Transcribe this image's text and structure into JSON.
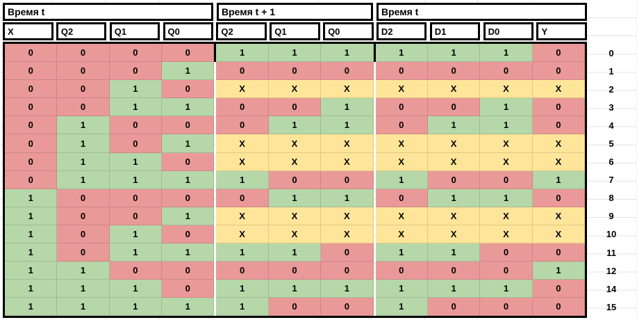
{
  "colors": {
    "fill_red": "#ea9999",
    "fill_green": "#b6d7a8",
    "fill_yellow": "#ffe599",
    "border": "#000000",
    "gridline": "#e4e4e4"
  },
  "bands": [
    {
      "label": "Время t",
      "span": 4
    },
    {
      "label": "Время t + 1",
      "span": 3
    },
    {
      "label": "Время t",
      "span": 4
    }
  ],
  "columns": [
    "X",
    "Q2",
    "Q1",
    "Q0",
    "Q2",
    "Q1",
    "Q0",
    "D2",
    "D1",
    "D0",
    "Y"
  ],
  "rows": [
    {
      "label": "0",
      "values": [
        "0",
        "0",
        "0",
        "0",
        "1",
        "1",
        "1",
        "1",
        "1",
        "1",
        "0"
      ],
      "colors": [
        "r",
        "r",
        "r",
        "r",
        "g",
        "g",
        "g",
        "g",
        "g",
        "g",
        "r"
      ]
    },
    {
      "label": "1",
      "values": [
        "0",
        "0",
        "0",
        "1",
        "0",
        "0",
        "0",
        "0",
        "0",
        "0",
        "0"
      ],
      "colors": [
        "r",
        "r",
        "r",
        "g",
        "r",
        "r",
        "r",
        "r",
        "r",
        "r",
        "r"
      ]
    },
    {
      "label": "2",
      "values": [
        "0",
        "0",
        "1",
        "0",
        "X",
        "X",
        "X",
        "X",
        "X",
        "X",
        "X"
      ],
      "colors": [
        "r",
        "r",
        "g",
        "r",
        "y",
        "y",
        "y",
        "y",
        "y",
        "y",
        "y"
      ]
    },
    {
      "label": "3",
      "values": [
        "0",
        "0",
        "1",
        "1",
        "0",
        "0",
        "1",
        "0",
        "0",
        "1",
        "0"
      ],
      "colors": [
        "r",
        "r",
        "g",
        "g",
        "r",
        "r",
        "g",
        "r",
        "r",
        "g",
        "r"
      ]
    },
    {
      "label": "4",
      "values": [
        "0",
        "1",
        "0",
        "0",
        "0",
        "1",
        "1",
        "0",
        "1",
        "1",
        "0"
      ],
      "colors": [
        "r",
        "g",
        "r",
        "r",
        "r",
        "g",
        "g",
        "r",
        "g",
        "g",
        "r"
      ]
    },
    {
      "label": "5",
      "values": [
        "0",
        "1",
        "0",
        "1",
        "X",
        "X",
        "X",
        "X",
        "X",
        "X",
        "X"
      ],
      "colors": [
        "r",
        "g",
        "r",
        "g",
        "y",
        "y",
        "y",
        "y",
        "y",
        "y",
        "y"
      ]
    },
    {
      "label": "6",
      "values": [
        "0",
        "1",
        "1",
        "0",
        "X",
        "X",
        "X",
        "X",
        "X",
        "X",
        "X"
      ],
      "colors": [
        "r",
        "g",
        "g",
        "r",
        "y",
        "y",
        "y",
        "y",
        "y",
        "y",
        "y"
      ]
    },
    {
      "label": "7",
      "values": [
        "0",
        "1",
        "1",
        "1",
        "1",
        "0",
        "0",
        "1",
        "0",
        "0",
        "1"
      ],
      "colors": [
        "r",
        "g",
        "g",
        "g",
        "g",
        "r",
        "r",
        "g",
        "r",
        "r",
        "g"
      ]
    },
    {
      "label": "8",
      "values": [
        "1",
        "0",
        "0",
        "0",
        "0",
        "1",
        "1",
        "0",
        "1",
        "1",
        "0"
      ],
      "colors": [
        "g",
        "r",
        "r",
        "r",
        "r",
        "g",
        "g",
        "r",
        "g",
        "g",
        "r"
      ]
    },
    {
      "label": "9",
      "values": [
        "1",
        "0",
        "0",
        "1",
        "X",
        "X",
        "X",
        "X",
        "X",
        "X",
        "X"
      ],
      "colors": [
        "g",
        "r",
        "r",
        "g",
        "y",
        "y",
        "y",
        "y",
        "y",
        "y",
        "y"
      ]
    },
    {
      "label": "10",
      "values": [
        "1",
        "0",
        "1",
        "0",
        "X",
        "X",
        "X",
        "X",
        "X",
        "X",
        "X"
      ],
      "colors": [
        "g",
        "r",
        "g",
        "r",
        "y",
        "y",
        "y",
        "y",
        "y",
        "y",
        "y"
      ]
    },
    {
      "label": "11",
      "values": [
        "1",
        "0",
        "1",
        "1",
        "1",
        "1",
        "0",
        "1",
        "1",
        "0",
        "0"
      ],
      "colors": [
        "g",
        "r",
        "g",
        "g",
        "g",
        "g",
        "r",
        "g",
        "g",
        "r",
        "r"
      ]
    },
    {
      "label": "12",
      "values": [
        "1",
        "1",
        "0",
        "0",
        "0",
        "0",
        "0",
        "0",
        "0",
        "0",
        "1"
      ],
      "colors": [
        "g",
        "g",
        "r",
        "r",
        "r",
        "r",
        "r",
        "r",
        "r",
        "r",
        "g"
      ]
    },
    {
      "label": "14",
      "values": [
        "1",
        "1",
        "1",
        "0",
        "1",
        "1",
        "1",
        "1",
        "1",
        "1",
        "0"
      ],
      "colors": [
        "g",
        "g",
        "g",
        "r",
        "g",
        "g",
        "g",
        "g",
        "g",
        "g",
        "r"
      ]
    },
    {
      "label": "15",
      "values": [
        "1",
        "1",
        "1",
        "1",
        "1",
        "0",
        "0",
        "1",
        "0",
        "0",
        "0"
      ],
      "colors": [
        "g",
        "g",
        "g",
        "g",
        "g",
        "r",
        "r",
        "g",
        "r",
        "r",
        "r"
      ]
    }
  ]
}
